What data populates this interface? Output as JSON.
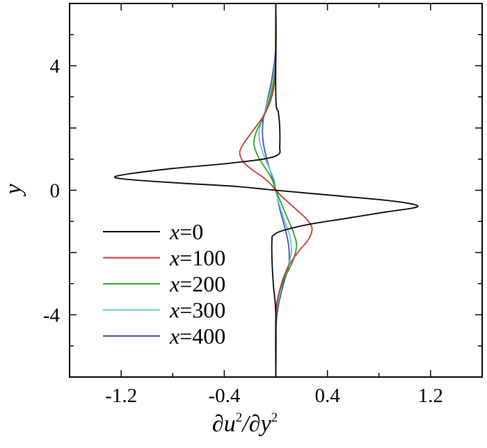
{
  "chart_data": {
    "type": "line",
    "title": "",
    "xlabel": "∂u²/∂y²",
    "ylabel": "y",
    "xlim": [
      -1.6,
      1.6
    ],
    "ylim": [
      -6,
      6
    ],
    "xticks": [
      -1.2,
      -0.4,
      0.4,
      1.2
    ],
    "xtick_labels": [
      "-1.2",
      "-0.4",
      "0.4",
      "1.2"
    ],
    "yticks": [
      4,
      0,
      -4
    ],
    "ytick_labels": [
      "4",
      "0",
      "-4"
    ],
    "grid": false,
    "legend_position": "lower-left",
    "series": [
      {
        "name": "x=0",
        "var": "x",
        "value": "=0",
        "color": "#000000",
        "x": [
          0.0,
          0.0,
          0.02,
          0.03,
          0.03,
          0.02,
          -0.1,
          -0.4,
          -0.8,
          -1.1,
          -1.22,
          -1.25,
          -1.2,
          -1.0,
          -0.7,
          -0.3,
          0.0,
          0.4,
          0.8,
          1.0,
          1.1,
          1.05,
          0.85,
          0.55,
          0.25,
          0.05,
          -0.02,
          -0.03,
          -0.03,
          -0.02,
          0.0,
          0.0
        ],
        "y": [
          6.0,
          3.0,
          2.5,
          2.0,
          1.4,
          1.15,
          1.0,
          0.85,
          0.7,
          0.55,
          0.47,
          0.42,
          0.37,
          0.3,
          0.22,
          0.12,
          0.0,
          -0.15,
          -0.3,
          -0.4,
          -0.5,
          -0.58,
          -0.7,
          -0.9,
          -1.1,
          -1.3,
          -1.45,
          -1.6,
          -2.2,
          -3.0,
          -4.0,
          -6.0
        ]
      },
      {
        "name": "x=100",
        "var": "x",
        "value": "=100",
        "color": "#c0392b",
        "x": [
          0.0,
          0.0,
          -0.02,
          -0.08,
          -0.18,
          -0.25,
          -0.28,
          -0.25,
          -0.18,
          -0.1,
          -0.04,
          0.0,
          0.06,
          0.14,
          0.22,
          0.27,
          0.28,
          0.25,
          0.17,
          0.09,
          0.03,
          0.0,
          0.0
        ],
        "y": [
          6.0,
          4.2,
          3.2,
          2.5,
          1.9,
          1.5,
          1.2,
          0.9,
          0.65,
          0.42,
          0.2,
          0.0,
          -0.25,
          -0.55,
          -0.85,
          -1.1,
          -1.3,
          -1.6,
          -2.0,
          -2.5,
          -3.2,
          -4.0,
          -6.0
        ]
      },
      {
        "name": "x=200",
        "var": "x",
        "value": "=200",
        "color": "#2ca02c",
        "x": [
          0.0,
          0.0,
          -0.03,
          -0.09,
          -0.15,
          -0.17,
          -0.14,
          -0.08,
          -0.03,
          0.0,
          0.04,
          0.09,
          0.14,
          0.16,
          0.13,
          0.07,
          0.02,
          0.0,
          0.0
        ],
        "y": [
          6.0,
          4.2,
          3.2,
          2.4,
          1.9,
          1.5,
          1.1,
          0.7,
          0.35,
          0.0,
          -0.4,
          -0.9,
          -1.4,
          -1.8,
          -2.3,
          -2.8,
          -3.4,
          -4.2,
          -6.0
        ]
      },
      {
        "name": "x=300",
        "var": "x",
        "value": "=300",
        "color": "#5fc9d6",
        "x": [
          0.0,
          0.0,
          -0.03,
          -0.08,
          -0.12,
          -0.13,
          -0.1,
          -0.05,
          -0.01,
          0.0,
          0.03,
          0.07,
          0.11,
          0.12,
          0.09,
          0.04,
          0.01,
          0.0,
          0.0
        ],
        "y": [
          6.0,
          4.4,
          3.4,
          2.6,
          2.1,
          1.7,
          1.2,
          0.7,
          0.3,
          0.0,
          -0.5,
          -1.0,
          -1.5,
          -2.0,
          -2.5,
          -3.1,
          -3.7,
          -4.4,
          -6.0
        ]
      },
      {
        "name": "x=400",
        "var": "x",
        "value": "=400",
        "color": "#4a4ab8",
        "x": [
          0.0,
          0.0,
          -0.03,
          -0.07,
          -0.1,
          -0.1,
          -0.07,
          -0.03,
          0.0,
          0.03,
          0.07,
          0.1,
          0.1,
          0.06,
          0.02,
          0.0,
          0.0
        ],
        "y": [
          6.0,
          4.6,
          3.6,
          2.8,
          2.2,
          1.6,
          1.0,
          0.45,
          0.0,
          -0.6,
          -1.2,
          -1.8,
          -2.4,
          -3.0,
          -3.7,
          -4.5,
          -6.0
        ]
      }
    ]
  }
}
